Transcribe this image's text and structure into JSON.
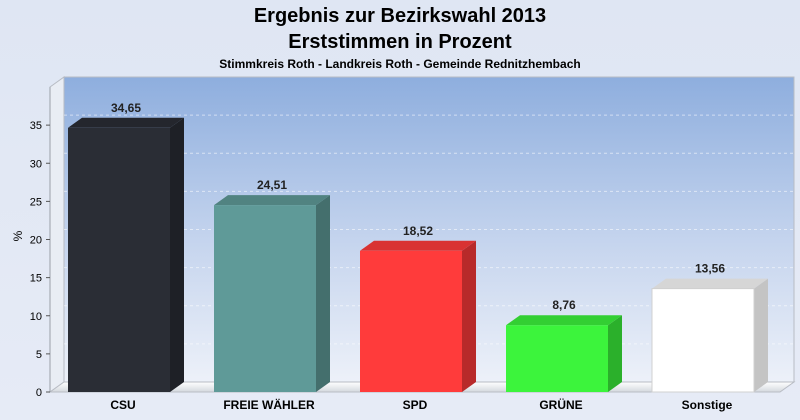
{
  "chart_data": {
    "type": "bar",
    "title_lines": [
      "Ergebnis zur Bezirkswahl 2013",
      "Erststimmen in Prozent"
    ],
    "subtitle": "Stimmkreis Roth - Landkreis Roth - Gemeinde Rednitzhembach",
    "ylabel": "%",
    "ylim": [
      0,
      40
    ],
    "yticks": [
      0,
      5,
      10,
      15,
      20,
      25,
      30,
      35
    ],
    "categories": [
      "CSU",
      "FREIE WÄHLER",
      "SPD",
      "GRÜNE",
      "Sonstige"
    ],
    "values": [
      34.65,
      24.51,
      18.52,
      8.76,
      13.56
    ],
    "value_labels": [
      "34,65",
      "24,51",
      "18,52",
      "8,76",
      "13,56"
    ],
    "colors": [
      "#2a2d35",
      "#5f9a98",
      "#ff3b3b",
      "#3cf43c",
      "#ffffff"
    ],
    "grid": true,
    "style": "3d"
  }
}
